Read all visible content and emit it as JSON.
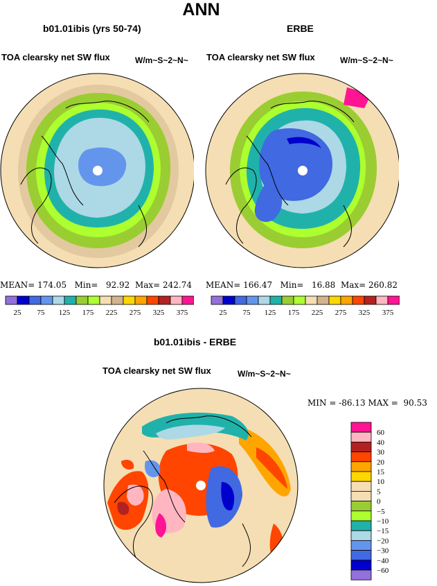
{
  "page": {
    "title": "ANN"
  },
  "panels": [
    {
      "case_title": "b01.01ibis (yrs 50-74)",
      "variable": "TOA clearsky net SW flux",
      "units": "W/m~S~2~N~",
      "stats": {
        "mean_label": "MEAN=",
        "mean": "174.05",
        "min_label": "Min=",
        "min": "92.92",
        "max_label": "Max=",
        "max": "242.74"
      }
    },
    {
      "case_title": "ERBE",
      "variable": "TOA clearsky net SW flux",
      "units": "W/m~S~2~N~",
      "stats": {
        "mean_label": "MEAN=",
        "mean": "166.47",
        "min_label": "Min=",
        "min": "16.88",
        "max_label": "Max=",
        "max": "260.82"
      }
    }
  ],
  "abs_colorbar": {
    "colors": [
      "#9370db",
      "#0000cd",
      "#4169e1",
      "#6495ed",
      "#add8e6",
      "#20b2aa",
      "#9acd32",
      "#adff2f",
      "#f5deb3",
      "#d2b48c",
      "#ffd700",
      "#ffa500",
      "#ff4500",
      "#b22222",
      "#ffb6c1",
      "#ff1493"
    ],
    "labels": [
      "25",
      "75",
      "125",
      "175",
      "225",
      "275",
      "325",
      "375"
    ]
  },
  "diff": {
    "title": "b01.01ibis - ERBE",
    "variable": "TOA clearsky net SW flux",
    "units": "W/m~S~2~N~",
    "min_label": "MIN =",
    "min": "-86.13",
    "max_label": "MAX =",
    "max": "90.53"
  },
  "diff_colorbar": {
    "colors": [
      "#ff1493",
      "#ffb6c1",
      "#b22222",
      "#ff4500",
      "#ffa500",
      "#ffd700",
      "#f5deb3",
      "#f5deb3",
      "#9acd32",
      "#adff2f",
      "#20b2aa",
      "#add8e6",
      "#6495ed",
      "#4169e1",
      "#0000cd",
      "#9370db"
    ],
    "labels": [
      "60",
      "40",
      "30",
      "20",
      "15",
      "10",
      "5",
      "0",
      "−5",
      "−10",
      "−15",
      "−20",
      "−30",
      "−40",
      "−60"
    ]
  }
}
